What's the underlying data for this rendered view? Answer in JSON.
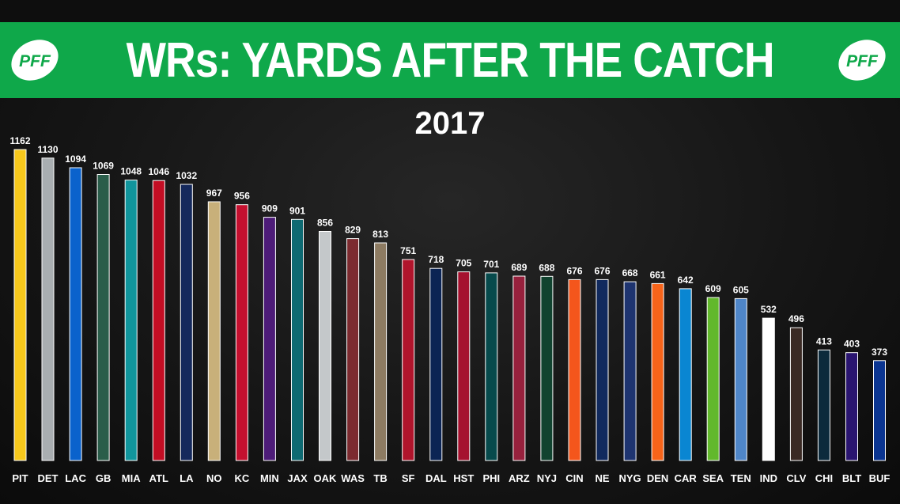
{
  "header": {
    "title": "WRs: YARDS AFTER THE CATCH",
    "logo_text": "PFF"
  },
  "chart_data": {
    "type": "bar",
    "title": "WRs: YARDS AFTER THE CATCH",
    "subtitle": "2017",
    "xlabel": "",
    "ylabel": "",
    "ylim": [
      0,
      1162
    ],
    "grid": false,
    "legend": "none",
    "categories": [
      "PIT",
      "DET",
      "LAC",
      "GB",
      "MIA",
      "ATL",
      "LA",
      "NO",
      "KC",
      "MIN",
      "JAX",
      "OAK",
      "WAS",
      "TB",
      "SF",
      "DAL",
      "HST",
      "PHI",
      "ARZ",
      "NYJ",
      "CIN",
      "NE",
      "NYG",
      "DEN",
      "CAR",
      "SEA",
      "TEN",
      "IND",
      "CLV",
      "CHI",
      "BLT",
      "BUF"
    ],
    "values": [
      1162,
      1130,
      1094,
      1069,
      1048,
      1046,
      1032,
      967,
      956,
      909,
      901,
      856,
      829,
      813,
      751,
      718,
      705,
      701,
      689,
      688,
      676,
      676,
      668,
      661,
      642,
      609,
      605,
      532,
      496,
      413,
      403,
      373
    ],
    "colors": [
      "#f7c81c",
      "#a9aeb1",
      "#0a62cc",
      "#2a5d4a",
      "#11959c",
      "#c30e24",
      "#15295c",
      "#c8b07a",
      "#c4102f",
      "#4d1c78",
      "#0e6a72",
      "#c4c8ca",
      "#7c2b30",
      "#8d7b62",
      "#b0152c",
      "#0b2454",
      "#a5122f",
      "#074a4c",
      "#97213d",
      "#11432f",
      "#f4561c",
      "#112a5e",
      "#1e3470",
      "#f7641a",
      "#0a86d2",
      "#62b82c",
      "#4f86c8",
      "#ffffff",
      "#3a2a24",
      "#0c2a3c",
      "#2a1570",
      "#0b3591"
    ]
  }
}
